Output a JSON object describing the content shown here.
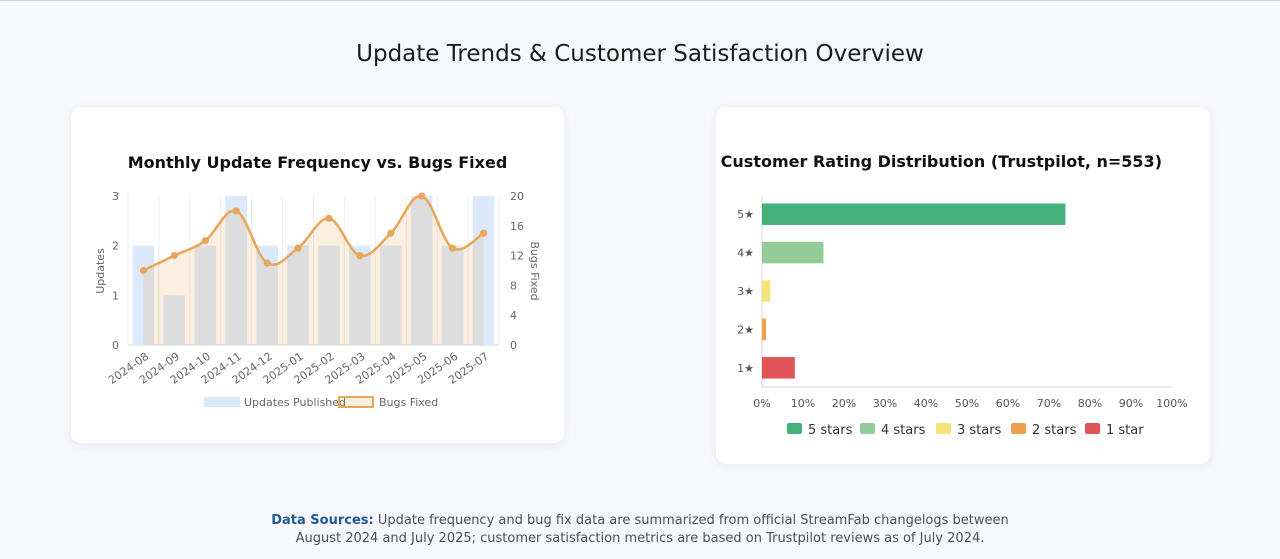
{
  "page": {
    "title": "Update Trends & Customer Satisfaction Overview"
  },
  "footnote": {
    "label": "Data Sources:",
    "line1": "Update frequency and bug fix data are summarized from official StreamFab changelogs between",
    "line2": "August 2024 and July 2025; customer satisfaction metrics are based on Trustpilot reviews as of July 2024."
  },
  "chart_data": [
    {
      "type": "bar+line",
      "title": "Monthly Update Frequency vs. Bugs Fixed",
      "categories": [
        "2024-08",
        "2024-09",
        "2024-10",
        "2024-11",
        "2024-12",
        "2025-01",
        "2025-02",
        "2025-03",
        "2025-04",
        "2025-05",
        "2025-06",
        "2025-07"
      ],
      "series": [
        {
          "name": "Updates Published",
          "type": "bar",
          "axis": "left",
          "values": [
            2,
            1,
            2,
            3,
            2,
            2,
            2,
            2,
            2,
            3,
            2,
            3
          ],
          "color": "#dbe9fb"
        },
        {
          "name": "Bugs Fixed",
          "type": "line",
          "axis": "right",
          "values": [
            10,
            12,
            14,
            18,
            11,
            13,
            17,
            12,
            15,
            20,
            13,
            15
          ],
          "color": "#e8a65a"
        }
      ],
      "ylabel": "Updates",
      "y2label": "Bugs Fixed",
      "ylim": [
        0,
        3
      ],
      "y2lim": [
        0,
        20
      ],
      "yticks": [
        "0",
        "1",
        "2",
        "3"
      ],
      "y2ticks": [
        "0",
        "4",
        "8",
        "12",
        "16",
        "20"
      ],
      "legend": "bottom"
    },
    {
      "type": "bar",
      "orientation": "horizontal",
      "title": "Customer Rating Distribution (Trustpilot, n=553)",
      "categories": [
        "5★",
        "4★",
        "3★",
        "2★",
        "1★"
      ],
      "values": [
        74,
        15,
        2,
        1,
        8
      ],
      "colors": [
        "#45b07a",
        "#93cc98",
        "#f6e27a",
        "#ef9f4d",
        "#e05457"
      ],
      "xlim": [
        0,
        100
      ],
      "xticks": [
        "0%",
        "10%",
        "20%",
        "30%",
        "40%",
        "50%",
        "60%",
        "70%",
        "80%",
        "90%",
        "100%"
      ],
      "legend_labels": [
        "5 stars",
        "4 stars",
        "3 stars",
        "2 stars",
        "1 star"
      ],
      "legend": "bottom"
    }
  ]
}
